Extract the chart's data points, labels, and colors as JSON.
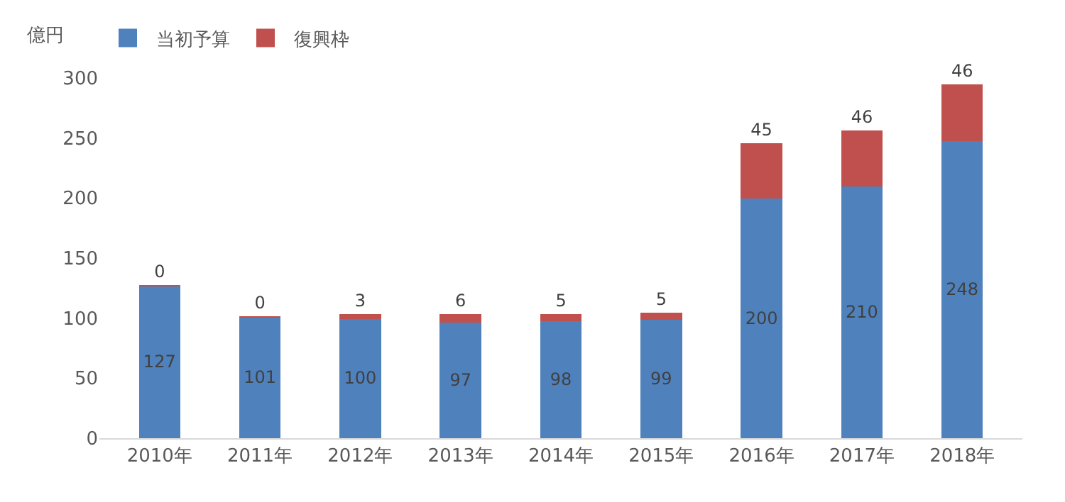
{
  "chart_data": {
    "type": "bar",
    "stacked": true,
    "ylabel": "億円",
    "categories": [
      "2010年",
      "2011年",
      "2012年",
      "2013年",
      "2014年",
      "2015年",
      "2016年",
      "2017年",
      "2018年"
    ],
    "series": [
      {
        "name": "当初予算",
        "color": "#4f81bd",
        "values": [
          127,
          101,
          100,
          97,
          98,
          99,
          200,
          210,
          248
        ]
      },
      {
        "name": "復興枠",
        "color": "#c0504d",
        "values": [
          0,
          0,
          3,
          6,
          5,
          5,
          45,
          46,
          46
        ]
      }
    ],
    "ylim": [
      0,
      300
    ],
    "yticks": [
      0,
      50,
      100,
      150,
      200,
      250,
      300
    ],
    "grid": false,
    "legend": "top left",
    "data_labels": true
  }
}
